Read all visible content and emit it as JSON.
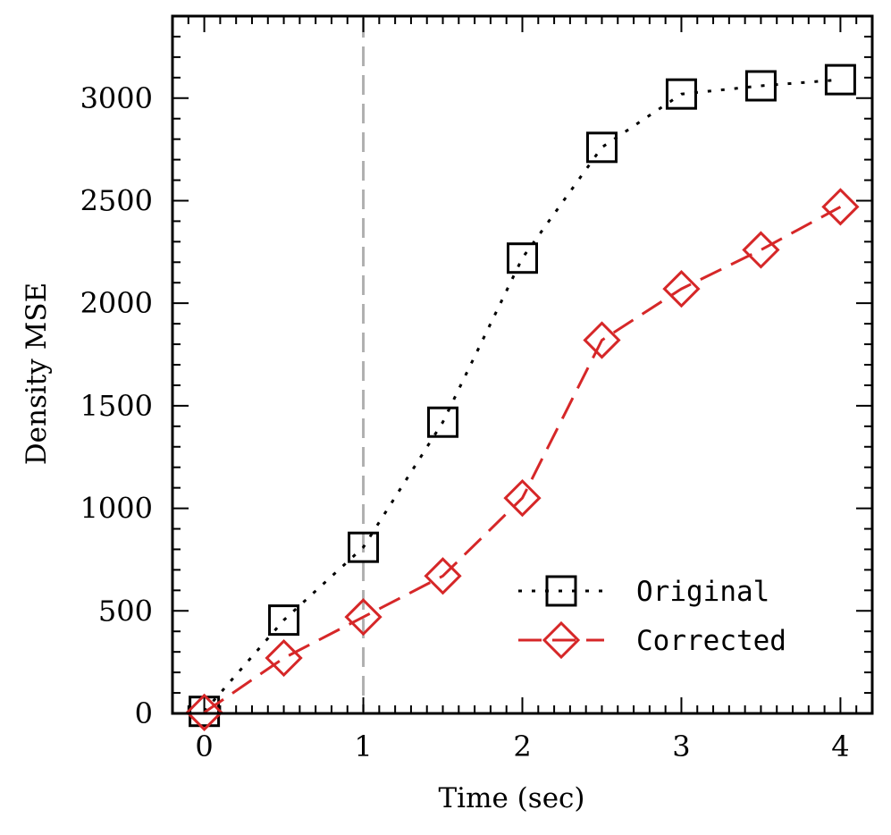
{
  "chart_data": {
    "type": "line",
    "title": "",
    "xlabel": "Time (sec)",
    "ylabel": "Density MSE",
    "xlim": [
      -0.2,
      4.2
    ],
    "ylim": [
      0,
      3400
    ],
    "x_ticks": [
      0,
      1,
      2,
      3,
      4
    ],
    "x_tick_labels": [
      "0",
      "1",
      "2",
      "3",
      "4"
    ],
    "y_ticks": [
      0,
      500,
      1000,
      1500,
      2000,
      2500,
      3000
    ],
    "y_tick_labels": [
      "0",
      "500",
      "1000",
      "1500",
      "2000",
      "2500",
      "3000"
    ],
    "grid": false,
    "reference_line": {
      "x": 1,
      "style": "dashed",
      "color": "#b0b0b0"
    },
    "legend_position": "lower-right",
    "series": [
      {
        "name": "Original",
        "marker": "square",
        "line_style": "dotted",
        "color": "#000000",
        "x": [
          0,
          0.5,
          1,
          1.5,
          2,
          2.5,
          3,
          3.5,
          4
        ],
        "values": [
          10,
          455,
          810,
          1420,
          2220,
          2760,
          3020,
          3060,
          3090
        ]
      },
      {
        "name": "Corrected",
        "marker": "diamond",
        "line_style": "dashed",
        "color": "#d62728",
        "x": [
          0,
          0.5,
          1,
          1.5,
          2,
          2.5,
          3,
          3.5,
          4
        ],
        "values": [
          5,
          270,
          470,
          670,
          1050,
          1820,
          2070,
          2260,
          2470
        ]
      }
    ]
  }
}
